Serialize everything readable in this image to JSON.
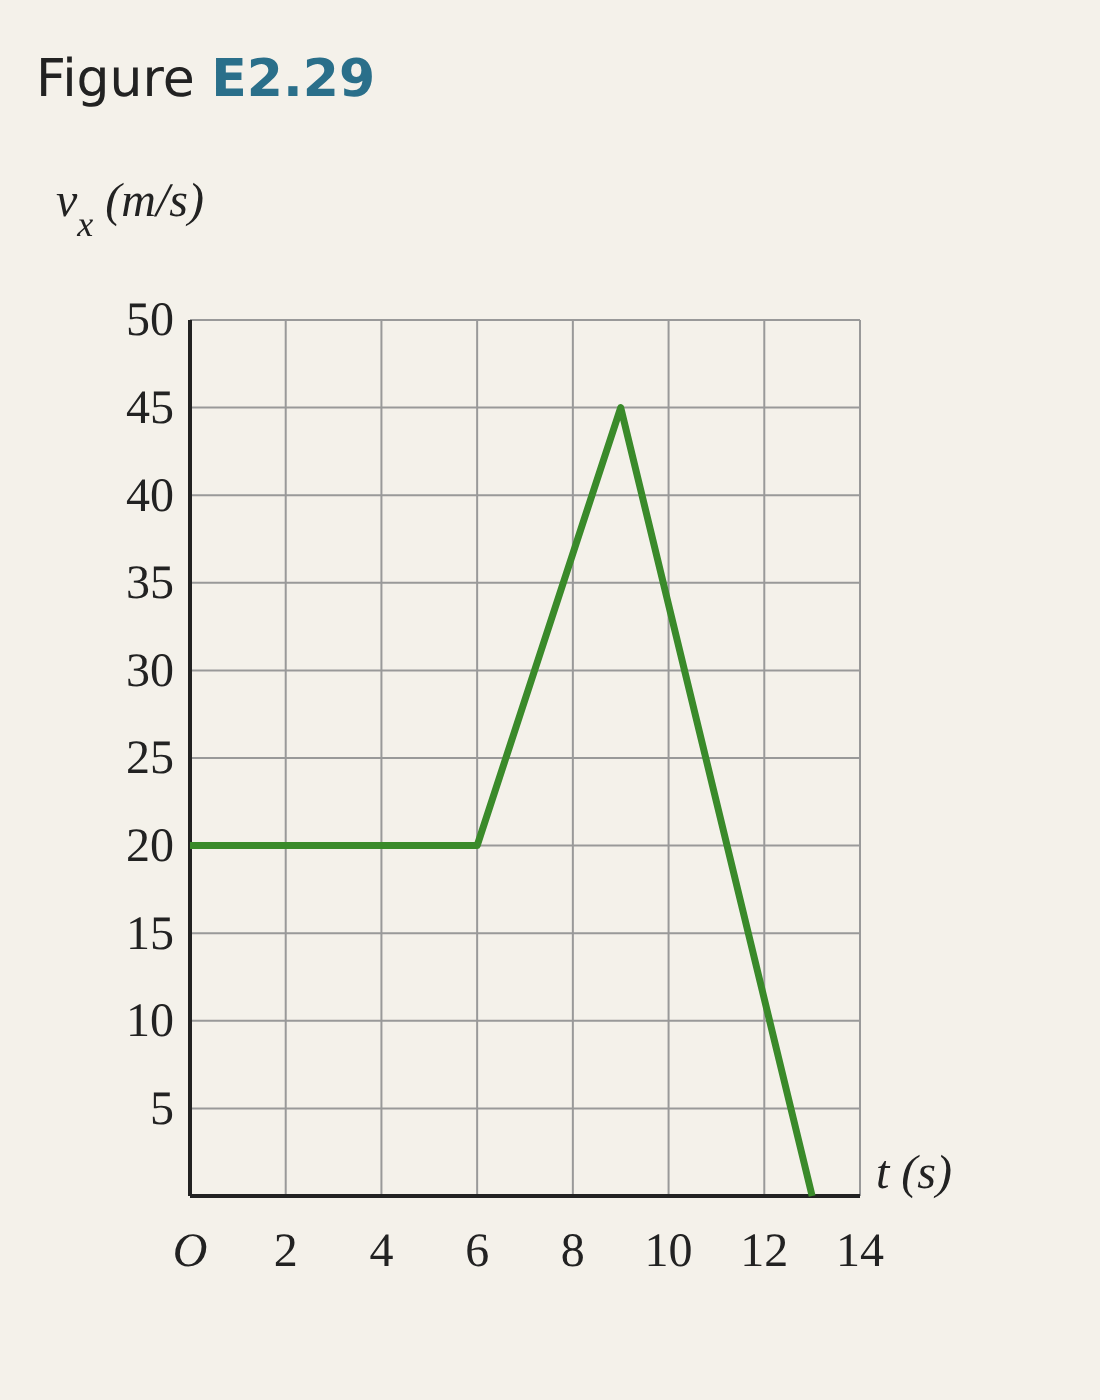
{
  "chart_data": {
    "type": "line",
    "title": "Figure E2.29",
    "xlabel": "t (s)",
    "ylabel": "v$_{x}$ (m/s)",
    "x": [
      0,
      6,
      9,
      13
    ],
    "series": [
      {
        "color": "#3a8a2a",
        "values": [
          20,
          20,
          45,
          0
        ]
      }
    ],
    "xlim": [
      0,
      14
    ],
    "xticks": [
      {
        "value": 0,
        "label": "O"
      },
      2,
      4,
      6,
      8,
      10,
      12,
      14
    ],
    "ylim": [
      0,
      50
    ],
    "yticks": [
      {
        "value": 0,
        "label": null
      },
      5,
      10,
      15,
      20,
      25,
      30,
      35,
      40,
      45,
      50
    ],
    "grid": true,
    "marker": "none",
    "line_style": "solid"
  }
}
